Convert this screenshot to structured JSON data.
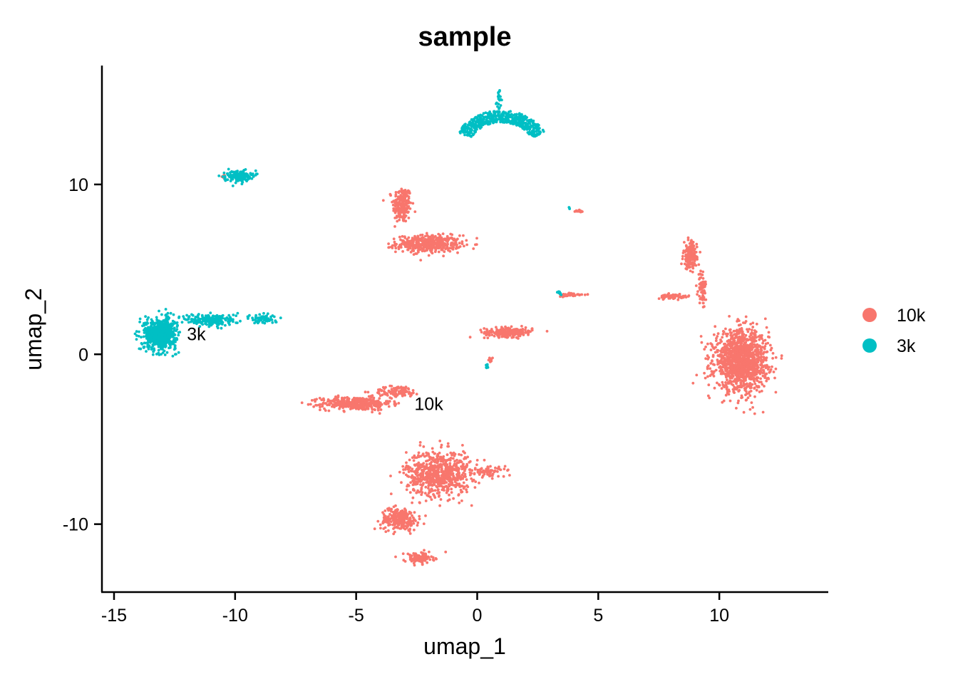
{
  "chart_data": {
    "type": "scatter",
    "title": "sample",
    "xlabel": "umap_1",
    "ylabel": "umap_2",
    "xlim": [
      -15.5,
      14.5
    ],
    "ylim": [
      -14,
      17
    ],
    "x_ticks": [
      -15,
      -10,
      -5,
      0,
      5,
      10
    ],
    "y_ticks": [
      -10,
      0,
      10
    ],
    "x_tick_labels": [
      "-15",
      "-10",
      "-5",
      "0",
      "5",
      "10"
    ],
    "y_tick_labels": [
      "-10",
      "0",
      "10"
    ],
    "grid": false,
    "legend_position": "right",
    "series": [
      {
        "name": "10k",
        "color": "#F8766D",
        "clusters": [
          {
            "center": [
              -3.1,
              8.8
            ],
            "spread": [
              0.35,
              1.0
            ],
            "n": 220
          },
          {
            "center": [
              -2.0,
              6.5
            ],
            "spread": [
              1.2,
              0.45
            ],
            "n": 420
          },
          {
            "center": [
              -5.0,
              -2.9
            ],
            "spread": [
              1.3,
              0.35
            ],
            "n": 380
          },
          {
            "center": [
              -3.3,
              -2.2
            ],
            "spread": [
              0.9,
              0.3
            ],
            "n": 100
          },
          {
            "center": [
              1.3,
              1.3
            ],
            "spread": [
              0.9,
              0.25
            ],
            "n": 220
          },
          {
            "center": [
              -1.6,
              -7.0
            ],
            "spread": [
              1.2,
              1.2
            ],
            "n": 700
          },
          {
            "center": [
              -3.2,
              -9.7
            ],
            "spread": [
              0.7,
              0.6
            ],
            "n": 260
          },
          {
            "center": [
              -2.4,
              -12.0
            ],
            "spread": [
              0.55,
              0.3
            ],
            "n": 110
          },
          {
            "center": [
              0.5,
              -6.9
            ],
            "spread": [
              0.6,
              0.3
            ],
            "n": 70
          },
          {
            "center": [
              10.9,
              -0.4
            ],
            "spread": [
              1.0,
              1.6
            ],
            "n": 1300
          },
          {
            "center": [
              8.8,
              5.8
            ],
            "spread": [
              0.25,
              0.7
            ],
            "n": 160
          },
          {
            "center": [
              8.1,
              3.4
            ],
            "spread": [
              0.6,
              0.12
            ],
            "n": 70
          },
          {
            "center": [
              9.3,
              3.9
            ],
            "spread": [
              0.15,
              1.0
            ],
            "n": 70
          },
          {
            "center": [
              3.9,
              3.5
            ],
            "spread": [
              0.5,
              0.1
            ],
            "n": 40
          },
          {
            "center": [
              4.2,
              8.4
            ],
            "spread": [
              0.15,
              0.1
            ],
            "n": 15
          },
          {
            "center": [
              0.55,
              -0.3
            ],
            "spread": [
              0.1,
              0.2
            ],
            "n": 10
          },
          {
            "center": [
              -10.5,
              10.5
            ],
            "spread": [
              0.1,
              0.1
            ],
            "n": 4
          }
        ]
      },
      {
        "name": "3k",
        "color": "#00BFC4",
        "clusters": [
          {
            "center": [
              -13.1,
              1.2
            ],
            "spread": [
              0.6,
              0.8
            ],
            "n": 700
          },
          {
            "center": [
              -11.0,
              2.0
            ],
            "spread": [
              1.0,
              0.35
            ],
            "n": 200
          },
          {
            "center": [
              -8.8,
              2.1
            ],
            "spread": [
              0.5,
              0.25
            ],
            "n": 70
          },
          {
            "center": [
              -9.9,
              10.5
            ],
            "spread": [
              0.5,
              0.3
            ],
            "n": 150
          },
          {
            "center": [
              0.4,
              -0.7
            ],
            "spread": [
              0.05,
              0.15
            ],
            "n": 10
          },
          {
            "center": [
              3.4,
              3.6
            ],
            "spread": [
              0.08,
              0.08
            ],
            "n": 8
          },
          {
            "center": [
              3.8,
              8.6
            ],
            "spread": [
              0.05,
              0.05
            ],
            "n": 3
          }
        ],
        "arc": {
          "center": [
            1.0,
            12.0
          ],
          "radius": [
            1.7,
            2.0
          ],
          "n": 500
        },
        "spike": {
          "center": [
            0.9,
            15.1
          ],
          "spread": [
            0.06,
            0.35
          ],
          "n": 20
        }
      }
    ],
    "cluster_labels": [
      {
        "text": "10k",
        "x": -2.0,
        "y": -2.9
      },
      {
        "text": "3k",
        "x": -11.6,
        "y": 1.2
      }
    ]
  }
}
